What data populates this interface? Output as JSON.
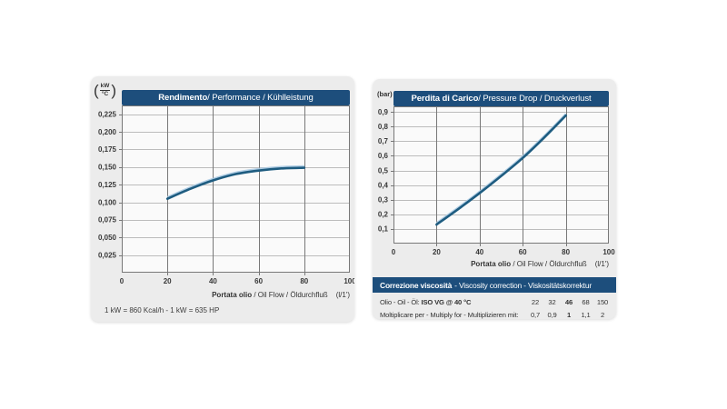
{
  "colors": {
    "panel_bg": "#ececec",
    "header_bg": "#1d4e7c",
    "header_text": "#ffffff",
    "plot_bg": "#fafafa",
    "grid_vertical": "#787878",
    "grid_horizontal": "#bcbcbc",
    "plot_border": "#787878",
    "curve": "#1e5c80",
    "curve_highlight": "#a9c9e2",
    "tick_text": "#383838"
  },
  "performance_chart": {
    "title_bold": "Rendimento",
    "title_rest": " / Performance / Kühlleistung",
    "y_unit_num": "kW",
    "y_unit_den": "°C",
    "x_label_bold": "Portata olio",
    "x_label_rest": " / Oil Flow / Öldurchfluß",
    "x_label_unit": "(l/1')",
    "footnote": "1 kW = 860 Kcal/h - 1 kW = 635 HP"
  },
  "pressure_chart": {
    "title_bold": "Perdita di Carico",
    "title_rest": " / Pressure Drop / Druckverlust",
    "y_unit": "(bar)",
    "x_label_bold": "Portata olio",
    "x_label_rest": " / Oil Flow / Öldurchfluß",
    "x_label_unit": "(l/1')"
  },
  "viscosity_table": {
    "header_bold": "Correzione viscosità",
    "header_rest": "- Viscosity correction - Viskositätskorrektur",
    "row1_label_prefix": "Olio - Oil - Öl: ",
    "row1_label_bold": "ISO VG @ 40 °C",
    "row1_values": [
      "22",
      "32",
      "46",
      "68",
      "150"
    ],
    "row2_label": "Moltiplicare per - Multiply for - Multiplizieren mit:",
    "row2_values": [
      "0,7",
      "0,9",
      "1",
      "1,1",
      "2"
    ]
  },
  "chart_data": [
    {
      "id": "performance",
      "type": "line",
      "title": "Rendimento / Performance / Kühlleistung",
      "xlabel": "Portata olio / Oil Flow / Öldurchfluß (l/1')",
      "ylabel": "kW/°C",
      "xlim": [
        0,
        100
      ],
      "ylim": [
        0,
        0.2375
      ],
      "x_ticks": [
        0,
        20,
        40,
        60,
        80,
        100
      ],
      "x_tick_labels": [
        "0",
        "20",
        "40",
        "60",
        "80",
        "100"
      ],
      "y_ticks": [
        0.025,
        0.05,
        0.075,
        0.1,
        0.125,
        0.15,
        0.175,
        0.2,
        0.225
      ],
      "y_tick_labels": [
        "0,025",
        "0,050",
        "0,075",
        "0,100",
        "0,125",
        "0,150",
        "0,175",
        "0,200",
        "0,225"
      ],
      "grid": true,
      "legend": "none",
      "series": [
        {
          "name": "cooling capacity",
          "points": [
            [
              20,
              0.105
            ],
            [
              30,
              0.119
            ],
            [
              40,
              0.131
            ],
            [
              50,
              0.14
            ],
            [
              60,
              0.145
            ],
            [
              70,
              0.148
            ],
            [
              80,
              0.149
            ]
          ]
        }
      ]
    },
    {
      "id": "pressure_drop",
      "type": "line",
      "title": "Perdita di Carico / Pressure Drop / Druckverlust",
      "xlabel": "Portata olio / Oil Flow / Öldurchfluß (l/1')",
      "ylabel": "bar",
      "xlim": [
        0,
        100
      ],
      "ylim": [
        0,
        0.938
      ],
      "x_ticks": [
        0,
        20,
        40,
        60,
        80,
        100
      ],
      "x_tick_labels": [
        "0",
        "20",
        "40",
        "60",
        "80",
        "100"
      ],
      "y_ticks": [
        0.1,
        0.2,
        0.3,
        0.4,
        0.5,
        0.6,
        0.7,
        0.8,
        0.9
      ],
      "y_tick_labels": [
        "0,1",
        "0,2",
        "0,3",
        "0,4",
        "0,5",
        "0,6",
        "0,7",
        "0,8",
        "0,9"
      ],
      "grid": true,
      "legend": "none",
      "series": [
        {
          "name": "pressure drop",
          "points": [
            [
              20,
              0.13
            ],
            [
              30,
              0.235
            ],
            [
              40,
              0.345
            ],
            [
              50,
              0.462
            ],
            [
              60,
              0.585
            ],
            [
              70,
              0.725
            ],
            [
              80,
              0.875
            ]
          ]
        }
      ]
    }
  ]
}
